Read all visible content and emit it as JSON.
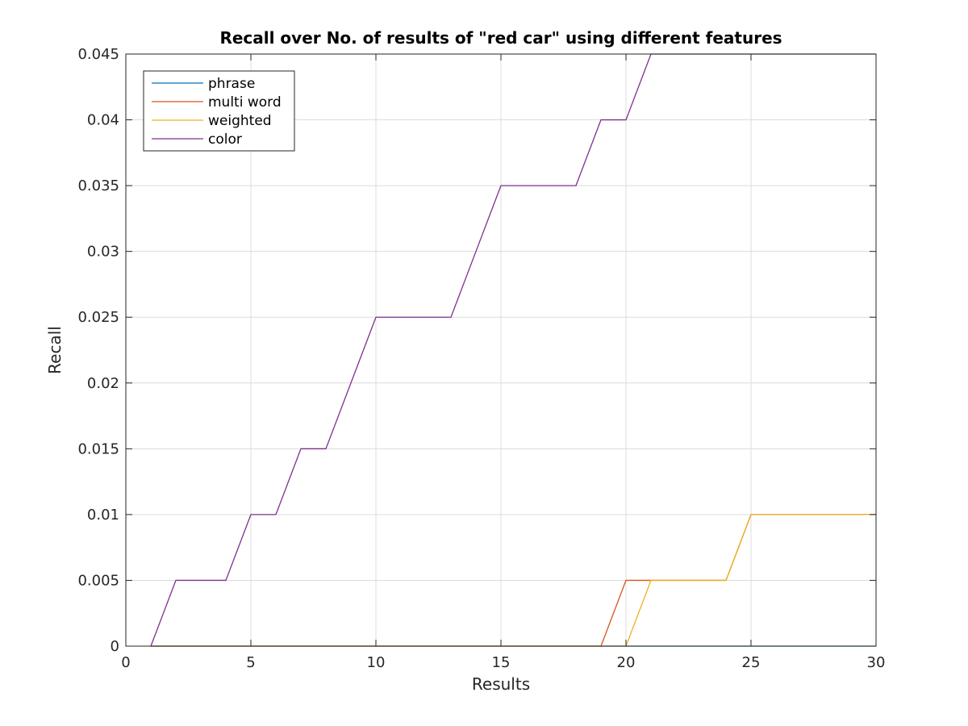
{
  "chart_data": {
    "type": "line",
    "title": "Recall over No. of results of \"red car\" using different features",
    "xlabel": "Results",
    "ylabel": "Recall",
    "xlim": [
      0,
      30
    ],
    "ylim": [
      0,
      0.045
    ],
    "xticks": [
      0,
      5,
      10,
      15,
      20,
      25,
      30
    ],
    "yticks": [
      0,
      0.005,
      0.01,
      0.015,
      0.02,
      0.025,
      0.03,
      0.035,
      0.04,
      0.045
    ],
    "xtick_labels": [
      "0",
      "5",
      "10",
      "15",
      "20",
      "25",
      "30"
    ],
    "ytick_labels": [
      "0",
      "0.005",
      "0.01",
      "0.015",
      "0.02",
      "0.025",
      "0.03",
      "0.035",
      "0.04",
      "0.045"
    ],
    "grid": true,
    "legend_position": "top-left",
    "x": [
      1,
      2,
      3,
      4,
      5,
      6,
      7,
      8,
      9,
      10,
      11,
      12,
      13,
      14,
      15,
      16,
      17,
      18,
      19,
      20,
      21,
      22,
      23,
      24,
      25,
      26,
      27,
      28,
      29,
      30
    ],
    "series": [
      {
        "name": "phrase",
        "color": "#0072BD",
        "values": [
          0,
          0,
          0,
          0,
          0,
          0,
          0,
          0,
          0,
          0,
          0,
          0,
          0,
          0,
          0,
          0,
          0,
          0,
          0,
          0,
          0,
          0,
          0,
          0,
          0,
          0,
          0,
          0,
          0,
          0
        ]
      },
      {
        "name": "multi word",
        "color": "#D95319",
        "values": [
          0,
          0,
          0,
          0,
          0,
          0,
          0,
          0,
          0,
          0,
          0,
          0,
          0,
          0,
          0,
          0,
          0,
          0,
          0,
          0.005,
          0.005,
          0.005,
          0.005,
          0.005,
          0.01,
          0.01,
          0.01,
          0.01,
          0.01,
          0.01
        ]
      },
      {
        "name": "weighted",
        "color": "#EDB120",
        "values": [
          0,
          0,
          0,
          0,
          0,
          0,
          0,
          0,
          0,
          0,
          0,
          0,
          0,
          0,
          0,
          0,
          0,
          0,
          0,
          0,
          0.005,
          0.005,
          0.005,
          0.005,
          0.01,
          0.01,
          0.01,
          0.01,
          0.01,
          0.01
        ]
      },
      {
        "name": "color",
        "color": "#7E2F8E",
        "values": [
          0,
          0.005,
          0.005,
          0.005,
          0.01,
          0.01,
          0.015,
          0.015,
          0.02,
          0.025,
          0.025,
          0.025,
          0.025,
          0.03,
          0.035,
          0.035,
          0.035,
          0.035,
          0.04,
          0.04,
          0.045,
          0.045,
          0.045,
          0.045,
          0.045,
          0.045,
          0.045,
          0.045,
          0.045,
          0.045
        ]
      }
    ]
  }
}
